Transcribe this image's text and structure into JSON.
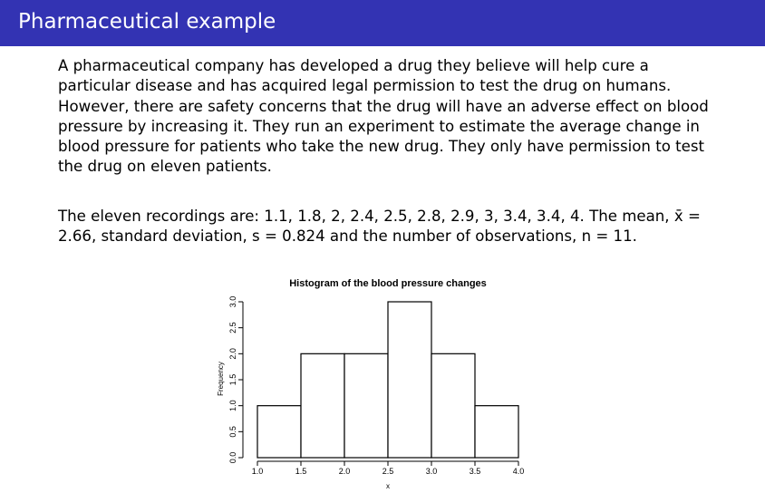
{
  "slide": {
    "title": "Pharmaceutical example",
    "paragraph1_lines": [
      "A pharmaceutical company has developed a drug they believe will help cure a",
      "particular disease and has acquired legal permission to test the drug on humans.",
      "However, there are safety concerns that the drug will have an adverse effect on blood",
      "pressure by increasing it. They run an experiment to estimate the average change in",
      "blood pressure for patients who take the new drug. They only have permission to test",
      "the drug on eleven patients."
    ],
    "paragraph2_lines": [
      "The eleven recordings are: 1.1, 1.8, 2, 2.4, 2.5, 2.8, 2.9, 3, 3.4, 3.4, 4. The mean, x̄ =",
      "2.66, standard deviation, s = 0.824 and the number of observations, n = 11."
    ]
  },
  "chart_data": {
    "type": "bar",
    "title": "Histogram of the blood pressure changes",
    "xlabel": "x",
    "ylabel": "Frequency",
    "bin_edges": [
      1.0,
      1.5,
      2.0,
      2.5,
      3.0,
      3.5,
      4.0
    ],
    "values": [
      1,
      2,
      2,
      3,
      2,
      1
    ],
    "xlim": [
      1.0,
      4.0
    ],
    "ylim": [
      0,
      3
    ],
    "x_ticks": [
      "1.0",
      "1.5",
      "2.0",
      "2.5",
      "3.0",
      "3.5",
      "4.0"
    ],
    "y_ticks": [
      "0.0",
      "0.5",
      "1.0",
      "1.5",
      "2.0",
      "2.5",
      "3.0"
    ],
    "grid": false,
    "bar_fill": "#ffffff",
    "bar_stroke": "#000000"
  }
}
